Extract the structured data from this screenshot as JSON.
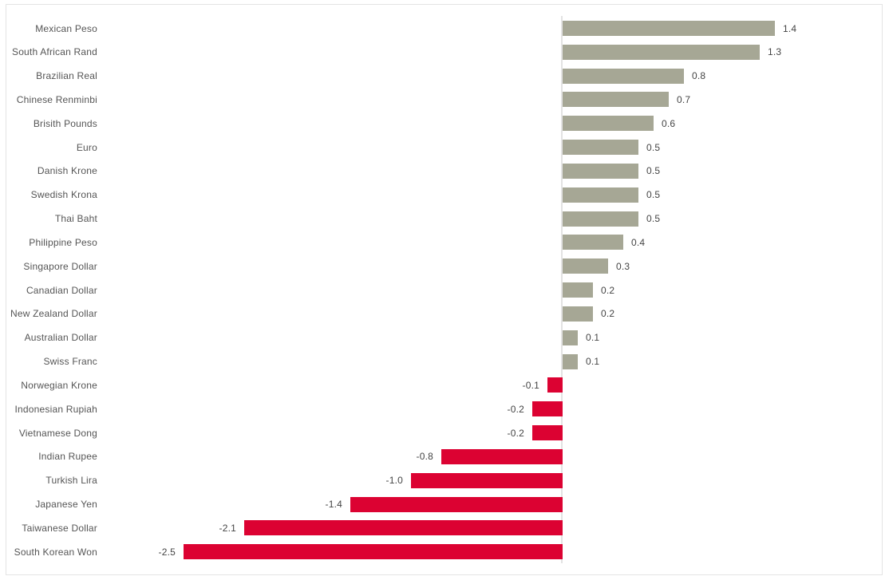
{
  "chart_data": {
    "type": "bar",
    "orientation": "horizontal",
    "title": "",
    "xlabel": "",
    "ylabel": "",
    "categories": [
      "Mexican Peso",
      "South African Rand",
      "Brazilian Real",
      "Chinese Renminbi",
      "Brisith Pounds",
      "Euro",
      "Danish Krone",
      "Swedish Krona",
      "Thai Baht",
      "Philippine Peso",
      "Singapore Dollar",
      "Canadian Dollar",
      "New Zealand Dollar",
      "Australian Dollar",
      "Swiss Franc",
      "Norwegian Krone",
      "Indonesian Rupiah",
      "Vietnamese Dong",
      "Indian Rupee",
      "Turkish Lira",
      "Japanese Yen",
      "Taiwanese Dollar",
      "South Korean Won"
    ],
    "values": [
      1.4,
      1.3,
      0.8,
      0.7,
      0.6,
      0.5,
      0.5,
      0.5,
      0.5,
      0.4,
      0.3,
      0.2,
      0.2,
      0.1,
      0.1,
      -0.1,
      -0.2,
      -0.2,
      -0.8,
      -1.0,
      -1.4,
      -2.1,
      -2.5
    ],
    "value_labels": [
      "1.4",
      "1.3",
      "0.8",
      "0.7",
      "0.6",
      "0.5",
      "0.5",
      "0.5",
      "0.5",
      "0.4",
      "0.3",
      "0.2",
      "0.2",
      "0.1",
      "0.1",
      "-0.1",
      "-0.2",
      "-0.2",
      "-0.8",
      "-1.0",
      "-1.4",
      "-2.1",
      "-2.5"
    ],
    "xlim": [
      -3.7,
      2.1
    ],
    "gridlines": false,
    "legend": "none",
    "data_labels": "outside-end",
    "colors": {
      "positive_bar": "#a6a795",
      "negative_bar": "#dc0232",
      "zero_line": "#e3e3e3",
      "border": "#e4e4e4",
      "category_text": "#555555",
      "value_text": "#444444",
      "background": "#ffffff"
    }
  }
}
